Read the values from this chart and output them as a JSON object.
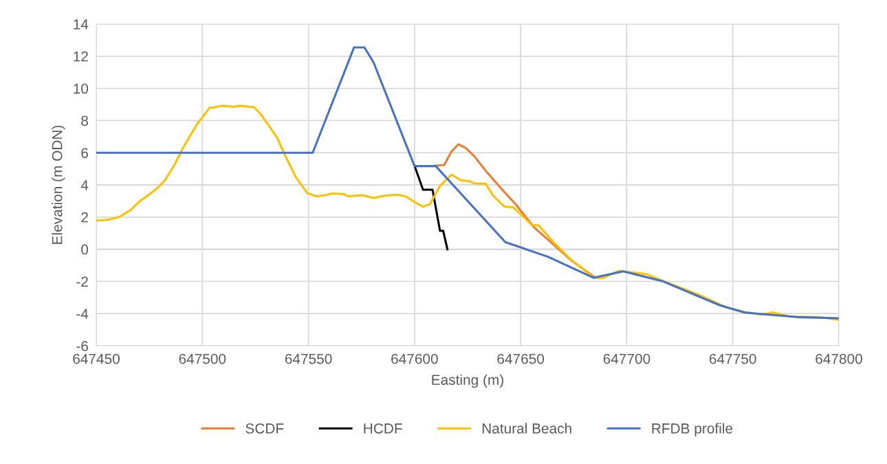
{
  "chart_data": {
    "type": "line",
    "xlabel": "Easting (m)",
    "ylabel": "Elevation (m ODN)",
    "xlim": [
      647450,
      647800
    ],
    "xticks": [
      647450,
      647500,
      647550,
      647600,
      647650,
      647700,
      647750,
      647800
    ],
    "ylim": [
      -6,
      14
    ],
    "yticks": [
      -6,
      -4,
      -2,
      0,
      2,
      4,
      6,
      8,
      10,
      12,
      14
    ],
    "grid": true,
    "legend": "bottom",
    "marker": "none",
    "line_style": "solid",
    "series": [
      {
        "name": "SCDF",
        "color": "#ed7d31",
        "x": [
          647610,
          647614,
          647617.4,
          647620.7,
          647624.3,
          647628.2,
          647633.6,
          647641.2,
          647647.7,
          647656.3,
          647666,
          647674,
          647685
        ],
        "values": [
          5.2,
          5.24,
          6.07,
          6.53,
          6.28,
          5.78,
          4.87,
          3.72,
          2.79,
          1.37,
          0.23,
          -0.7,
          -1.75
        ]
      },
      {
        "name": "HCDF",
        "color": "#000000",
        "x": [
          647600,
          647604,
          647608.5,
          647612,
          647613.5,
          647615.5
        ],
        "values": [
          5.2,
          3.7,
          3.7,
          1.15,
          1.15,
          0
        ]
      },
      {
        "name": "Natural Beach",
        "color": "#ffc000",
        "x": [
          647450,
          647455.4,
          647460.8,
          647466.2,
          647470,
          647478.1,
          647482.4,
          647486.7,
          647491.1,
          647497.5,
          647503.5,
          647506.2,
          647508.9,
          647514.8,
          647517.5,
          647524.5,
          647527.8,
          647535.3,
          647539.7,
          647544,
          647549.4,
          647553.7,
          647558,
          647561.2,
          647566.7,
          647568.8,
          647575.3,
          647580.7,
          647586.1,
          647591.5,
          647595.8,
          647600.1,
          647603.9,
          647607.2,
          647612,
          647617.4,
          647621.8,
          647626.1,
          647628.2,
          647633.6,
          647636.9,
          647642.3,
          647646.6,
          647652,
          647655.2,
          647658.5,
          647666,
          647673.6,
          647684.4,
          647688.7,
          647696.3,
          647709.3,
          647720,
          647734.1,
          647747.1,
          647755.7,
          647763.3,
          647768.7,
          647777.3,
          647791.3,
          647800
        ],
        "values": [
          1.79,
          1.83,
          2.0,
          2.44,
          2.93,
          3.72,
          4.29,
          5.21,
          6.35,
          7.78,
          8.8,
          8.83,
          8.92,
          8.86,
          8.92,
          8.83,
          8.35,
          6.92,
          5.64,
          4.5,
          3.5,
          3.29,
          3.36,
          3.47,
          3.43,
          3.29,
          3.36,
          3.19,
          3.33,
          3.39,
          3.29,
          2.93,
          2.65,
          2.79,
          3.93,
          4.64,
          4.29,
          4.22,
          4.1,
          4.07,
          3.36,
          2.65,
          2.6,
          1.94,
          1.51,
          1.48,
          0.37,
          -0.63,
          -1.77,
          -1.8,
          -1.34,
          -1.55,
          -2.12,
          -2.83,
          -3.62,
          -3.9,
          -4.07,
          -3.93,
          -4.19,
          -4.22,
          -4.4
        ]
      },
      {
        "name": "RFDB profile",
        "color": "#4472c4",
        "x": [
          647450,
          647552,
          647571.5,
          647576.4,
          647580.7,
          647600,
          647610,
          647642.8,
          647662.8,
          647684.4,
          647698.4,
          647716.8,
          647743.8,
          647755.7,
          647780.5,
          647800
        ],
        "values": [
          6.0,
          6.0,
          12.55,
          12.55,
          11.62,
          5.17,
          5.17,
          0.44,
          -0.46,
          -1.77,
          -1.37,
          -1.98,
          -3.48,
          -3.94,
          -4.22,
          -4.29
        ]
      }
    ]
  }
}
